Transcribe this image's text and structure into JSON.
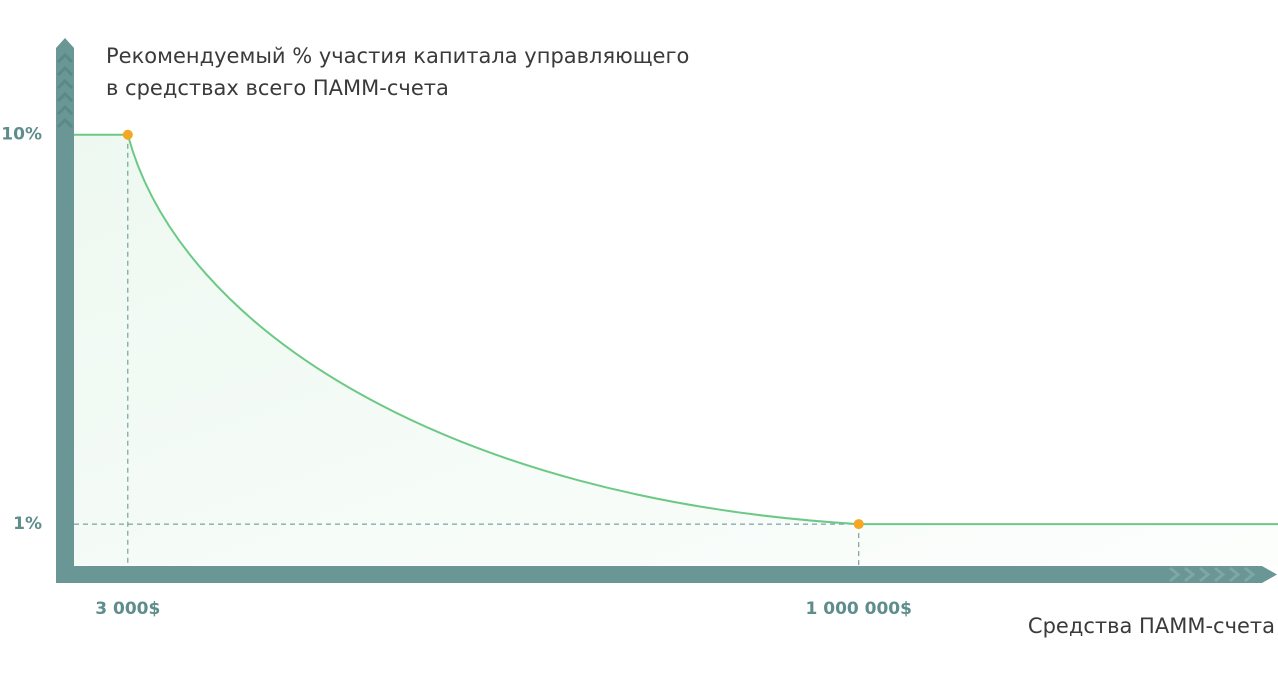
{
  "chart_data": {
    "type": "line",
    "title": [
      "Рекомендуемый % участия капитала управляющего",
      "в средствах всего ПАММ-счета"
    ],
    "x_label": "Средства ПАММ-счета",
    "log_scale": true,
    "x": [
      3000,
      1000000
    ],
    "series": [
      {
        "color": "#6cc985",
        "marker_color": "#f5a623",
        "values": [
          10,
          1
        ]
      }
    ],
    "xlim": [
      1750,
      28000000
    ],
    "xticks": [
      {
        "value": 3000,
        "label": "3 000$"
      },
      {
        "value": 1000000,
        "label": "1 000 000$"
      }
    ],
    "ylim": [
      0.74,
      17
    ],
    "yticks": [
      {
        "value": 1,
        "label": "1%"
      },
      {
        "value": 10,
        "label": "10%"
      }
    ]
  }
}
